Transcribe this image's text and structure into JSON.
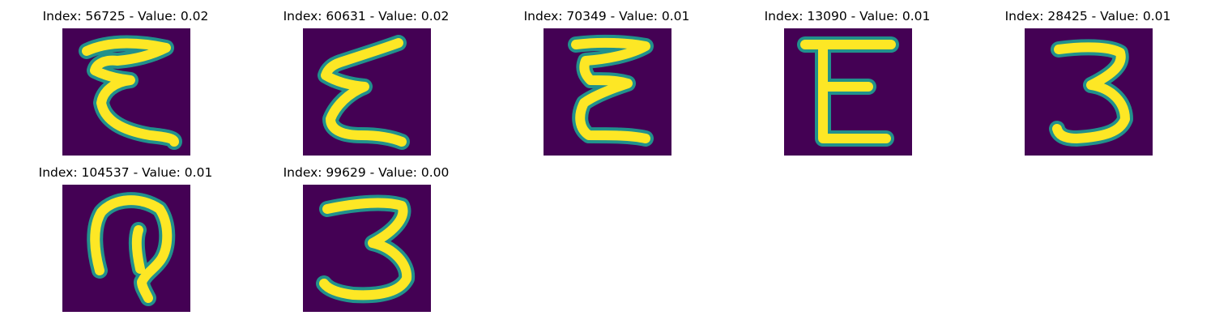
{
  "colors": {
    "background": "#440154",
    "low": "#31688e",
    "mid": "#21918c",
    "high": "#fde725",
    "accent": "#b5de2b"
  },
  "panels": [
    {
      "title": "Index: 56725 - Value: 0.02",
      "glyph": "epsilon-wide"
    },
    {
      "title": "Index: 60631 - Value: 0.02",
      "glyph": "epsilon-slanted"
    },
    {
      "title": "Index: 70349 - Value: 0.01",
      "glyph": "epsilon-compact"
    },
    {
      "title": "Index: 13090 - Value: 0.01",
      "glyph": "epsilon-blocky"
    },
    {
      "title": "Index: 28425 - Value: 0.01",
      "glyph": "three-upright"
    },
    {
      "title": "Index: 104537 - Value: 0.01",
      "glyph": "hook-curve"
    },
    {
      "title": "Index: 99629 - Value: 0.00",
      "glyph": "three-rounded"
    }
  ]
}
